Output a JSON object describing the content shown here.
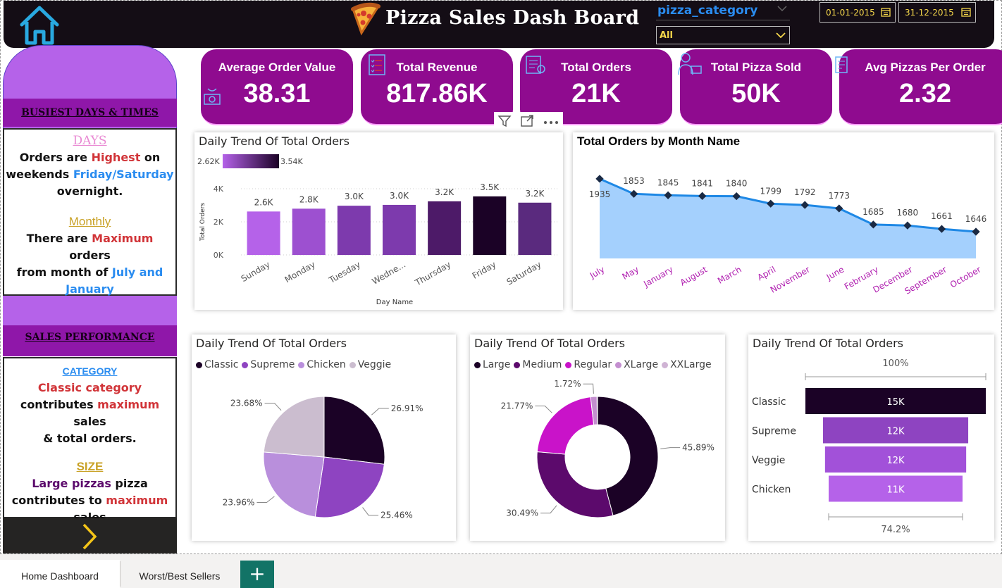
{
  "header": {
    "title": "Pizza Sales Dash Board",
    "slicer_label": "pizza_category",
    "slicer_value": "All",
    "date_start": "01-01-2015",
    "date_end": "31-12-2015"
  },
  "sidebar": {
    "section1_title": "BUSIEST DAYS & TIMES",
    "days_heading": "DAYS",
    "days_line1a": "Orders are ",
    "days_line1b": "Highest",
    "days_line1c": " on",
    "days_line2a": "weekends ",
    "days_line2b": "Friday/Saturday",
    "days_line3": "overnight.",
    "monthly_heading": "Monthly",
    "monthly_line1a": "There are ",
    "monthly_line1b": "Maximum",
    "monthly_line1c": " orders",
    "monthly_line2a": "from month of ",
    "monthly_line2b": "July and",
    "monthly_line3": "January",
    "section2_title": "SALES PERFORMANCE",
    "category_heading": "CATEGORY",
    "category_line1": "Classic category",
    "category_line2a": "contributes ",
    "category_line2b": "maximum",
    "category_line2c": " sales",
    "category_line3": "& total orders.",
    "size_heading": "SIZE",
    "size_line1a": "Large pizzas",
    "size_line1b": " pizza",
    "size_line2a": "contributes to ",
    "size_line2b": "maximum",
    "size_line3": "sales"
  },
  "kpis": [
    {
      "label": "Average Order Value",
      "value": "38.31"
    },
    {
      "label": "Total Revenue",
      "value": "817.86K"
    },
    {
      "label": "Total Orders",
      "value": "21K"
    },
    {
      "label": "Total Pizza Sold",
      "value": "50K"
    },
    {
      "label": "Avg Pizzas Per Order",
      "value": "2.32"
    }
  ],
  "colors": {
    "dark_bg": "#140d15",
    "kpi_card": "#8f0b8f",
    "sidebar_purple": "#b562e9",
    "accent_blue": "#2a8cf0",
    "accent_red": "#d13438",
    "slicer_yellow": "#f5d74b",
    "area_fill": "#9fcdfd",
    "area_line": "#1e88e5",
    "tab_add": "#127366"
  },
  "chart_data": [
    {
      "type": "bar",
      "title": "Daily Trend Of Total Orders",
      "xlabel": "Day Name",
      "ylabel": "Total Orders",
      "ylim": [
        0,
        4000
      ],
      "yticks": [
        "0K",
        "2K",
        "4K"
      ],
      "color_scale": {
        "min_label": "2.62K",
        "max_label": "3.54K",
        "min_color": "#b562e9",
        "max_color": "#1b0226"
      },
      "categories": [
        "Sunday",
        "Monday",
        "Tuesday",
        "Wedne...",
        "Thursday",
        "Friday",
        "Saturday"
      ],
      "values": [
        2624,
        2794,
        2973,
        3024,
        3239,
        3538,
        3158
      ],
      "data_labels": [
        "2.6K",
        "2.8K",
        "3.0K",
        "3.0K",
        "3.2K",
        "3.5K",
        "3.2K"
      ],
      "colors": [
        "#b562e9",
        "#9d50d0",
        "#7d3aad",
        "#7d3aad",
        "#4d1a68",
        "#1b0226",
        "#5a2a7e"
      ]
    },
    {
      "type": "area",
      "title": "Total Orders by Month Name",
      "categories": [
        "July",
        "May",
        "January",
        "August",
        "March",
        "April",
        "November",
        "June",
        "February",
        "December",
        "September",
        "October"
      ],
      "values": [
        1935,
        1853,
        1845,
        1841,
        1840,
        1799,
        1792,
        1773,
        1685,
        1680,
        1661,
        1646
      ],
      "ylim": [
        1500,
        1950
      ]
    },
    {
      "type": "pie",
      "title": "Daily Trend Of Total Orders",
      "legend_position": "top-left",
      "labels": [
        "Classic",
        "Supreme",
        "Chicken",
        "Veggie"
      ],
      "values": [
        26.91,
        25.46,
        23.96,
        23.68
      ],
      "value_labels": [
        "26.91%",
        "25.46%",
        "23.96%",
        "23.68%"
      ],
      "colors": [
        "#1b0226",
        "#8e44c1",
        "#b98fdc",
        "#cbbdcf"
      ]
    },
    {
      "type": "pie",
      "title": "Daily Trend Of Total Orders",
      "donut": true,
      "legend_position": "top-left",
      "labels": [
        "Large",
        "Medium",
        "Regular",
        "XLarge",
        "XXLarge"
      ],
      "values": [
        45.89,
        30.49,
        21.77,
        1.72,
        0.13
      ],
      "value_labels": [
        "45.89%",
        "30.49%",
        "21.77%",
        "1.72%",
        ""
      ],
      "colors": [
        "#1b0226",
        "#5c0a6c",
        "#c913c9",
        "#c48fd0",
        "#cfb3d4"
      ]
    },
    {
      "type": "bar",
      "title": "Daily Trend Of Total Orders",
      "subtype": "funnel",
      "top_label": "100%",
      "bottom_label": "74.2%",
      "categories": [
        "Classic",
        "Supreme",
        "Veggie",
        "Chicken"
      ],
      "values": [
        14888,
        11987,
        11649,
        11050
      ],
      "data_labels": [
        "15K",
        "12K",
        "12K",
        "11K"
      ],
      "colors": [
        "#1b0226",
        "#8e44c1",
        "#a251d9",
        "#b562e9"
      ]
    }
  ],
  "tabs": [
    {
      "label": "Home Dashboard"
    },
    {
      "label": "Worst/Best Sellers"
    },
    {
      "label": "+"
    }
  ]
}
